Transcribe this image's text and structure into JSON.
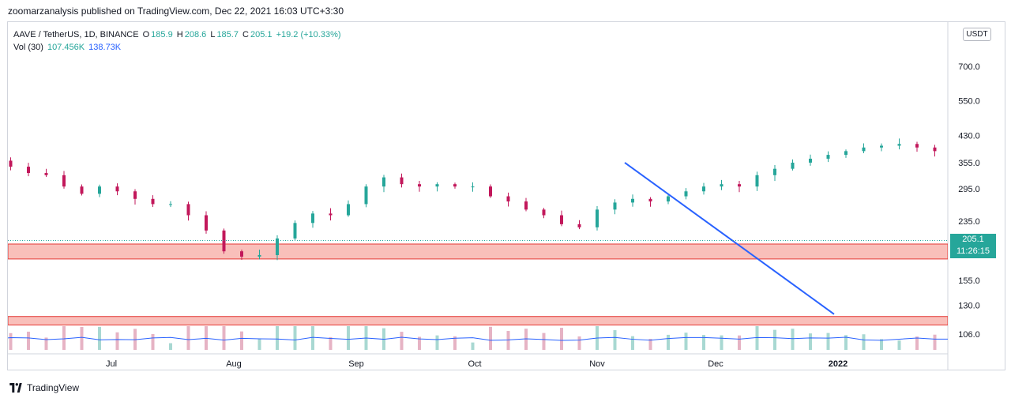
{
  "header": {
    "published": "zoomarzanalysis published on TradingView.com, Dec 22, 2021 16:03 UTC+3:30"
  },
  "legend": {
    "symbol": "AAVE / TetherUS, 1D, BINANCE",
    "open_label": "O",
    "open": "185.9",
    "high_label": "H",
    "high": "208.6",
    "low_label": "L",
    "low": "185.7",
    "close_label": "C",
    "close": "205.1",
    "change": "+19.2 (+10.33%)",
    "vol_label": "Vol (30)",
    "vol_value": "107.456K",
    "vol_ma": "138.73K"
  },
  "currency_button": "USDT",
  "price_badge": {
    "price": "205.1",
    "countdown": "11:26:15"
  },
  "footer": {
    "brand": "TradingView"
  },
  "colors": {
    "up": "#26a69a",
    "down": "#c2185b",
    "zone_fill": "#f8b4ae",
    "zone_border": "#e53935",
    "trendline": "#2962ff",
    "vol_ma": "#2962ff"
  },
  "chart_data": {
    "type": "candlestick",
    "y_scale": "log",
    "y_ticks": [
      {
        "label": "700.0",
        "value": 700
      },
      {
        "label": "550.0",
        "value": 550
      },
      {
        "label": "430.0",
        "value": 430
      },
      {
        "label": "355.0",
        "value": 355
      },
      {
        "label": "295.0",
        "value": 295
      },
      {
        "label": "235.0",
        "value": 235
      },
      {
        "label": "155.0",
        "value": 155
      },
      {
        "label": "130.0",
        "value": 130
      },
      {
        "label": "106.0",
        "value": 106
      }
    ],
    "x_ticks": [
      {
        "label": "Jul",
        "date": "2021-07-01"
      },
      {
        "label": "Aug",
        "date": "2021-08-01"
      },
      {
        "label": "Sep",
        "date": "2021-09-01"
      },
      {
        "label": "Oct",
        "date": "2021-10-01"
      },
      {
        "label": "Nov",
        "date": "2021-11-01"
      },
      {
        "label": "Dec",
        "date": "2021-12-01"
      },
      {
        "label": "2022",
        "date": "2022-01-01",
        "bold": true
      }
    ],
    "first_date": "2021-06-01",
    "last_date": "2021-12-22",
    "closes": [
      360,
      345,
      330,
      325,
      300,
      285,
      300,
      290,
      275,
      265,
      265,
      245,
      220,
      190,
      183,
      185,
      208,
      232,
      248,
      245,
      265,
      300,
      320,
      305,
      300,
      305,
      300,
      300,
      280,
      270,
      255,
      245,
      230,
      225,
      255,
      268,
      275,
      270,
      280,
      290,
      300,
      305,
      300,
      325,
      340,
      355,
      365,
      375,
      385,
      395,
      400,
      405,
      395,
      385,
      390,
      385,
      380,
      370,
      375,
      390,
      400,
      405,
      395,
      375,
      380,
      395,
      320,
      315,
      400,
      385,
      365,
      315,
      305,
      280,
      265,
      270,
      285,
      275,
      270,
      285,
      270,
      265,
      275,
      285,
      290,
      295,
      290,
      285,
      290,
      295,
      285,
      280,
      290,
      285,
      290,
      295,
      305,
      300,
      300,
      310,
      315,
      310,
      305,
      305,
      310,
      320,
      335,
      325,
      315,
      325,
      320,
      325,
      330,
      340,
      345,
      325,
      320,
      310,
      305,
      310,
      290,
      270,
      265,
      255,
      255,
      265,
      250,
      240,
      230,
      225,
      255,
      245,
      225,
      195,
      180,
      185,
      175,
      170,
      180,
      178,
      175,
      168,
      172,
      180,
      188,
      190,
      185,
      205
    ],
    "volume_ma": 138730
  },
  "annotations": {
    "zones": [
      {
        "low": 180,
        "high": 200
      },
      {
        "low": 113,
        "high": 120
      }
    ],
    "trendline": {
      "start_date": "2021-11-08",
      "start_price": 355,
      "end_date": "2021-12-31",
      "end_price": 122
    }
  }
}
